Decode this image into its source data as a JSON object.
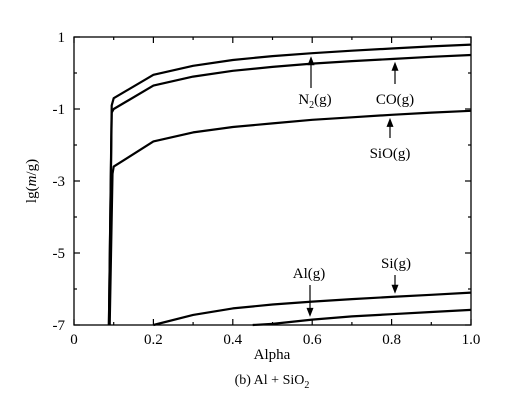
{
  "chart_data": {
    "type": "line",
    "xlabel": "Alpha",
    "ylabel_prefix": "lg(",
    "ylabel_var": "m",
    "ylabel_suffix": "/g)",
    "xlim": [
      0,
      1.0
    ],
    "ylim": [
      -7,
      1
    ],
    "xticks": [
      "0",
      "0.2",
      "0.4",
      "0.6",
      "0.8",
      "1.0"
    ],
    "yticks": [
      "1",
      "-1",
      "-3",
      "-5",
      "-7"
    ],
    "caption_prefix": "(b) Al + SiO",
    "caption_sub": "2",
    "series": [
      {
        "name_main": "N",
        "name_sub": "2",
        "name_rest": "(g)",
        "x": [
          0.088,
          0.095,
          0.1,
          0.2,
          0.3,
          0.4,
          0.5,
          0.6,
          0.7,
          0.8,
          0.9,
          1.0
        ],
        "y": [
          -7,
          -0.9,
          -0.7,
          -0.05,
          0.2,
          0.36,
          0.47,
          0.55,
          0.62,
          0.68,
          0.74,
          0.79
        ]
      },
      {
        "name_main": "CO",
        "name_sub": "",
        "name_rest": "(g)",
        "x": [
          0.088,
          0.095,
          0.1,
          0.2,
          0.3,
          0.4,
          0.5,
          0.6,
          0.7,
          0.8,
          0.9,
          1.0
        ],
        "y": [
          -7,
          -1.1,
          -1.0,
          -0.35,
          -0.1,
          0.06,
          0.17,
          0.26,
          0.33,
          0.39,
          0.45,
          0.5
        ]
      },
      {
        "name_main": "SiO",
        "name_sub": "",
        "name_rest": "(g)",
        "x": [
          0.09,
          0.097,
          0.1,
          0.2,
          0.3,
          0.4,
          0.5,
          0.6,
          0.7,
          0.8,
          0.9,
          1.0
        ],
        "y": [
          -7,
          -2.8,
          -2.6,
          -1.9,
          -1.65,
          -1.5,
          -1.4,
          -1.3,
          -1.23,
          -1.16,
          -1.1,
          -1.05
        ]
      },
      {
        "name_main": "Si",
        "name_sub": "",
        "name_rest": "(g)",
        "x": [
          0.2,
          0.3,
          0.4,
          0.5,
          0.6,
          0.7,
          0.8,
          0.9,
          1.0
        ],
        "y": [
          -7,
          -6.72,
          -6.54,
          -6.43,
          -6.35,
          -6.28,
          -6.22,
          -6.16,
          -6.1
        ]
      },
      {
        "name_main": "Al",
        "name_sub": "",
        "name_rest": "(g)",
        "x": [
          0.45,
          0.5,
          0.6,
          0.7,
          0.8,
          0.9,
          1.0
        ],
        "y": [
          -7,
          -6.97,
          -6.85,
          -6.76,
          -6.7,
          -6.64,
          -6.58
        ]
      }
    ]
  }
}
